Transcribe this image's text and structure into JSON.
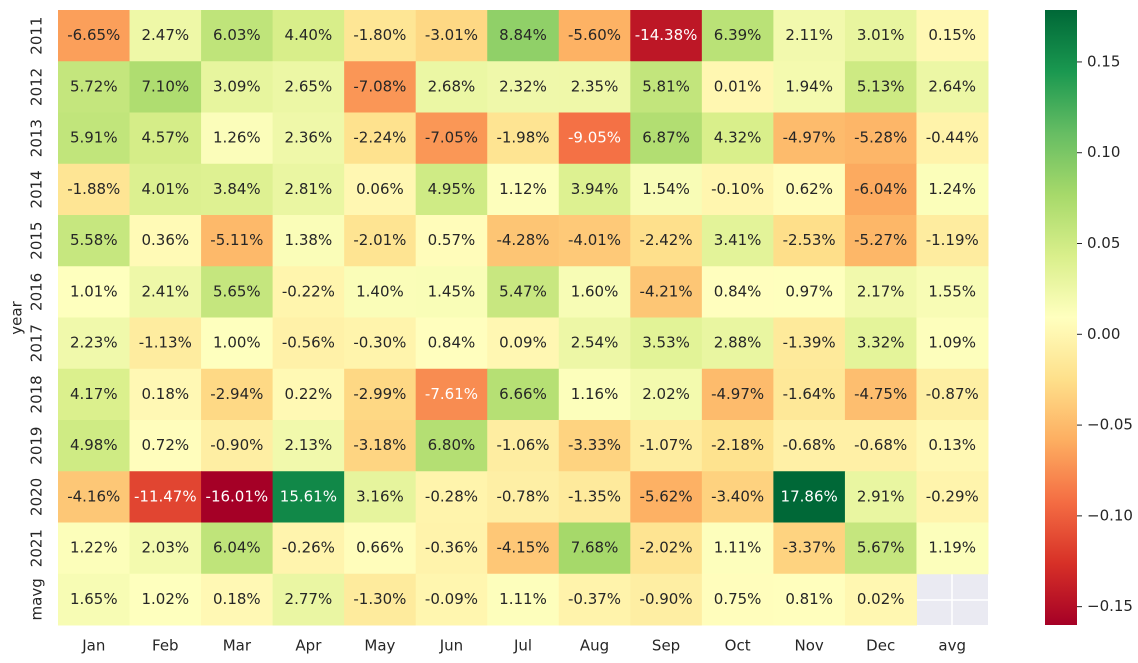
{
  "chart_data": {
    "type": "heatmap",
    "y_label": "year",
    "rows": [
      "2011",
      "2012",
      "2013",
      "2014",
      "2015",
      "2016",
      "2017",
      "2018",
      "2019",
      "2020",
      "2021",
      "mavg"
    ],
    "columns": [
      "Jan",
      "Feb",
      "Mar",
      "Apr",
      "May",
      "Jun",
      "Jul",
      "Aug",
      "Sep",
      "Oct",
      "Nov",
      "Dec",
      "avg"
    ],
    "values": [
      [
        -0.0665,
        0.0247,
        0.0603,
        0.044,
        -0.018,
        -0.0301,
        0.0884,
        -0.056,
        -0.1438,
        0.0639,
        0.0211,
        0.0301,
        0.0015
      ],
      [
        0.0572,
        0.071,
        0.0309,
        0.0265,
        -0.0708,
        0.0268,
        0.0232,
        0.0235,
        0.0581,
        0.0001,
        0.0194,
        0.0513,
        0.0264
      ],
      [
        0.0591,
        0.0457,
        0.0126,
        0.0236,
        -0.0224,
        -0.0705,
        -0.0198,
        -0.0905,
        0.0687,
        0.0432,
        -0.0497,
        -0.0528,
        -0.0044
      ],
      [
        -0.0188,
        0.0401,
        0.0384,
        0.0281,
        0.0006,
        0.0495,
        0.0112,
        0.0394,
        0.0154,
        -0.001,
        0.0062,
        -0.0604,
        0.0124
      ],
      [
        0.0558,
        0.0036,
        -0.0511,
        0.0138,
        -0.0201,
        0.0057,
        -0.0428,
        -0.0401,
        -0.0242,
        0.0341,
        -0.0253,
        -0.0527,
        -0.0119
      ],
      [
        0.0101,
        0.0241,
        0.0565,
        -0.0022,
        0.014,
        0.0145,
        0.0547,
        0.016,
        -0.0421,
        0.0084,
        0.0097,
        0.0217,
        0.0155
      ],
      [
        0.0223,
        -0.0113,
        0.01,
        -0.0056,
        -0.003,
        0.0084,
        0.0009,
        0.0254,
        0.0353,
        0.0288,
        -0.0139,
        0.0332,
        0.0109
      ],
      [
        0.0417,
        0.0018,
        -0.0294,
        0.0022,
        -0.0299,
        -0.0761,
        0.0666,
        0.0116,
        0.0202,
        -0.0497,
        -0.0164,
        -0.0475,
        -0.0087
      ],
      [
        0.0498,
        0.0072,
        -0.009,
        0.0213,
        -0.0318,
        0.068,
        -0.0106,
        -0.0333,
        -0.0107,
        -0.0218,
        -0.0068,
        -0.0068,
        0.0013
      ],
      [
        -0.0416,
        -0.1147,
        -0.1601,
        0.1561,
        0.0316,
        -0.0028,
        -0.0078,
        -0.0135,
        -0.0562,
        -0.034,
        0.1786,
        0.0291,
        -0.0029
      ],
      [
        0.0122,
        0.0203,
        0.0604,
        -0.0026,
        0.0066,
        -0.0036,
        -0.0415,
        0.0768,
        -0.0202,
        0.0111,
        -0.0337,
        0.0567,
        0.0119
      ],
      [
        0.0165,
        0.0102,
        0.0018,
        0.0277,
        -0.013,
        -0.0009,
        0.0111,
        -0.0037,
        -0.009,
        0.0075,
        0.0081,
        0.0002,
        null
      ]
    ],
    "value_labels": [
      [
        "-6.65%",
        "2.47%",
        "6.03%",
        "4.40%",
        "-1.80%",
        "-3.01%",
        "8.84%",
        "-5.60%",
        "-14.38%",
        "6.39%",
        "2.11%",
        "3.01%",
        "0.15%"
      ],
      [
        "5.72%",
        "7.10%",
        "3.09%",
        "2.65%",
        "-7.08%",
        "2.68%",
        "2.32%",
        "2.35%",
        "5.81%",
        "0.01%",
        "1.94%",
        "5.13%",
        "2.64%"
      ],
      [
        "5.91%",
        "4.57%",
        "1.26%",
        "2.36%",
        "-2.24%",
        "-7.05%",
        "-1.98%",
        "-9.05%",
        "6.87%",
        "4.32%",
        "-4.97%",
        "-5.28%",
        "-0.44%"
      ],
      [
        "-1.88%",
        "4.01%",
        "3.84%",
        "2.81%",
        "0.06%",
        "4.95%",
        "1.12%",
        "3.94%",
        "1.54%",
        "-0.10%",
        "0.62%",
        "-6.04%",
        "1.24%"
      ],
      [
        "5.58%",
        "0.36%",
        "-5.11%",
        "1.38%",
        "-2.01%",
        "0.57%",
        "-4.28%",
        "-4.01%",
        "-2.42%",
        "3.41%",
        "-2.53%",
        "-5.27%",
        "-1.19%"
      ],
      [
        "1.01%",
        "2.41%",
        "5.65%",
        "-0.22%",
        "1.40%",
        "1.45%",
        "5.47%",
        "1.60%",
        "-4.21%",
        "0.84%",
        "0.97%",
        "2.17%",
        "1.55%"
      ],
      [
        "2.23%",
        "-1.13%",
        "1.00%",
        "-0.56%",
        "-0.30%",
        "0.84%",
        "0.09%",
        "2.54%",
        "3.53%",
        "2.88%",
        "-1.39%",
        "3.32%",
        "1.09%"
      ],
      [
        "4.17%",
        "0.18%",
        "-2.94%",
        "0.22%",
        "-2.99%",
        "-7.61%",
        "6.66%",
        "1.16%",
        "2.02%",
        "-4.97%",
        "-1.64%",
        "-4.75%",
        "-0.87%"
      ],
      [
        "4.98%",
        "0.72%",
        "-0.90%",
        "2.13%",
        "-3.18%",
        "6.80%",
        "-1.06%",
        "-3.33%",
        "-1.07%",
        "-2.18%",
        "-0.68%",
        "-0.68%",
        "0.13%"
      ],
      [
        "-4.16%",
        "-11.47%",
        "-16.01%",
        "15.61%",
        "3.16%",
        "-0.28%",
        "-0.78%",
        "-1.35%",
        "-5.62%",
        "-3.40%",
        "17.86%",
        "2.91%",
        "-0.29%"
      ],
      [
        "1.22%",
        "2.03%",
        "6.04%",
        "-0.26%",
        "0.66%",
        "-0.36%",
        "-4.15%",
        "7.68%",
        "-2.02%",
        "1.11%",
        "-3.37%",
        "5.67%",
        "1.19%"
      ],
      [
        "1.65%",
        "1.02%",
        "0.18%",
        "2.77%",
        "-1.30%",
        "-0.09%",
        "1.11%",
        "-0.37%",
        "-0.90%",
        "0.75%",
        "0.81%",
        "0.02%",
        null
      ]
    ],
    "colormap": [
      "#a50026",
      "#d73027",
      "#f46d43",
      "#fdae61",
      "#fee08b",
      "#ffffbf",
      "#d9ef8b",
      "#a6d96a",
      "#66bd63",
      "#1a9850",
      "#006837"
    ],
    "zlim": [
      -0.1601,
      0.1786
    ],
    "zticks": [
      {
        "value": -0.15,
        "label": "−0.15"
      },
      {
        "value": -0.1,
        "label": "−0.10"
      },
      {
        "value": -0.05,
        "label": "−0.05"
      },
      {
        "value": 0,
        "label": "0.00"
      },
      0.05,
      {
        "value": 0.1,
        "label": "0.10"
      },
      0.15
    ]
  }
}
